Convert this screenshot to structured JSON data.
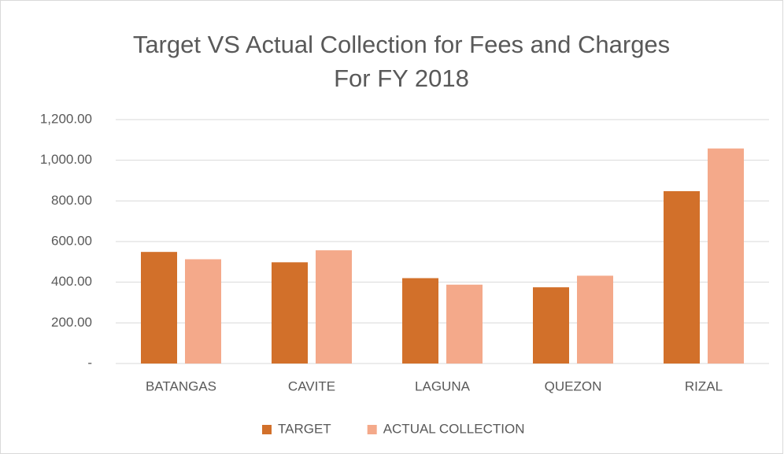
{
  "chart_data": {
    "type": "bar",
    "title": [
      "Target VS Actual Collection for Fees and Charges",
      "For FY 2018"
    ],
    "categories": [
      "BATANGAS",
      "CAVITE",
      "LAGUNA",
      "QUEZON",
      "RIZAL"
    ],
    "series": [
      {
        "name": "TARGET",
        "color": "#d2702a",
        "values": [
          549,
          498,
          420,
          375,
          848
        ]
      },
      {
        "name": "ACTUAL COLLECTION",
        "color": "#f4a98a",
        "values": [
          513,
          557,
          388,
          432,
          1058
        ]
      }
    ],
    "ylim": [
      0,
      1200
    ],
    "yticks": [
      {
        "value": 0,
        "label": "-"
      },
      {
        "value": 200,
        "label": "200.00"
      },
      {
        "value": 400,
        "label": "400.00"
      },
      {
        "value": 600,
        "label": "600.00"
      },
      {
        "value": 800,
        "label": "800.00"
      },
      {
        "value": 1000,
        "label": "1,000.00"
      },
      {
        "value": 1200,
        "label": "1,200.00"
      }
    ],
    "grid": true,
    "legend": "bottom"
  }
}
